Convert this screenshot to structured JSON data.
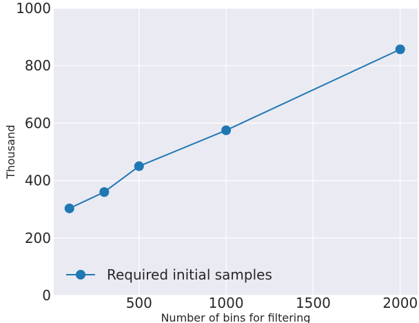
{
  "chart_data": {
    "type": "line",
    "xlabel": "Number of bins for filtering",
    "ylabel": "Thousand",
    "xlim": [
      10,
      2100
    ],
    "ylim": [
      0,
      1000
    ],
    "x_ticks": [
      500,
      1000,
      1500,
      2000
    ],
    "y_ticks": [
      0,
      200,
      400,
      600,
      800,
      1000
    ],
    "grid": true,
    "legend_position": "bottom-left",
    "series": [
      {
        "name": "Required initial samples",
        "color": "#1f77b4",
        "marker": "circle",
        "x": [
          100,
          300,
          500,
          1000,
          2000
        ],
        "y": [
          303,
          360,
          450,
          575,
          857
        ]
      }
    ],
    "background_color": "#eaeaf2",
    "grid_color": "#ffffff"
  }
}
